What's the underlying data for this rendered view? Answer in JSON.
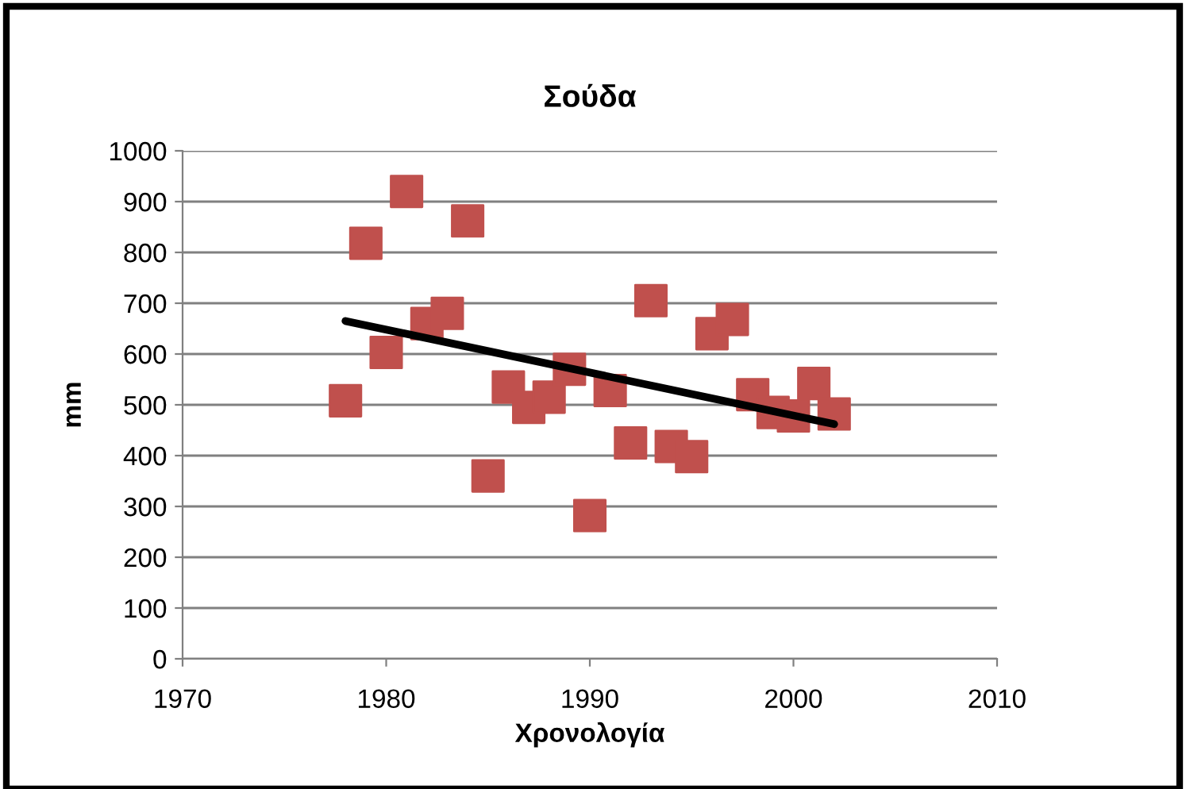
{
  "chart_data": {
    "type": "scatter",
    "title": "Σούδα",
    "xlabel": "Χρονολογία",
    "ylabel": "mm",
    "xlim": [
      1970,
      2010
    ],
    "xticks": [
      1970,
      1980,
      1990,
      2000,
      2010
    ],
    "ylim": [
      0,
      1000
    ],
    "yticks": [
      0,
      100,
      200,
      300,
      400,
      500,
      600,
      700,
      800,
      900,
      1000
    ],
    "grid": "y",
    "legend": false,
    "series": [
      {
        "color": "#c0504d",
        "marker": "square",
        "x": [
          1978,
          1979,
          1980,
          1981,
          1982,
          1983,
          1984,
          1985,
          1986,
          1987,
          1988,
          1989,
          1990,
          1991,
          1992,
          1993,
          1994,
          1995,
          1996,
          1997,
          1998,
          1999,
          2000,
          2001,
          2002
        ],
        "values": [
          508,
          818,
          603,
          920,
          660,
          680,
          862,
          360,
          535,
          495,
          515,
          570,
          282,
          528,
          425,
          705,
          418,
          398,
          640,
          668,
          520,
          485,
          478,
          542,
          482
        ]
      },
      {
        "type": "line",
        "color": "#000000",
        "marker": "none",
        "line_style": "solid",
        "x": [
          1978,
          2002
        ],
        "values": [
          665,
          462
        ]
      }
    ]
  }
}
